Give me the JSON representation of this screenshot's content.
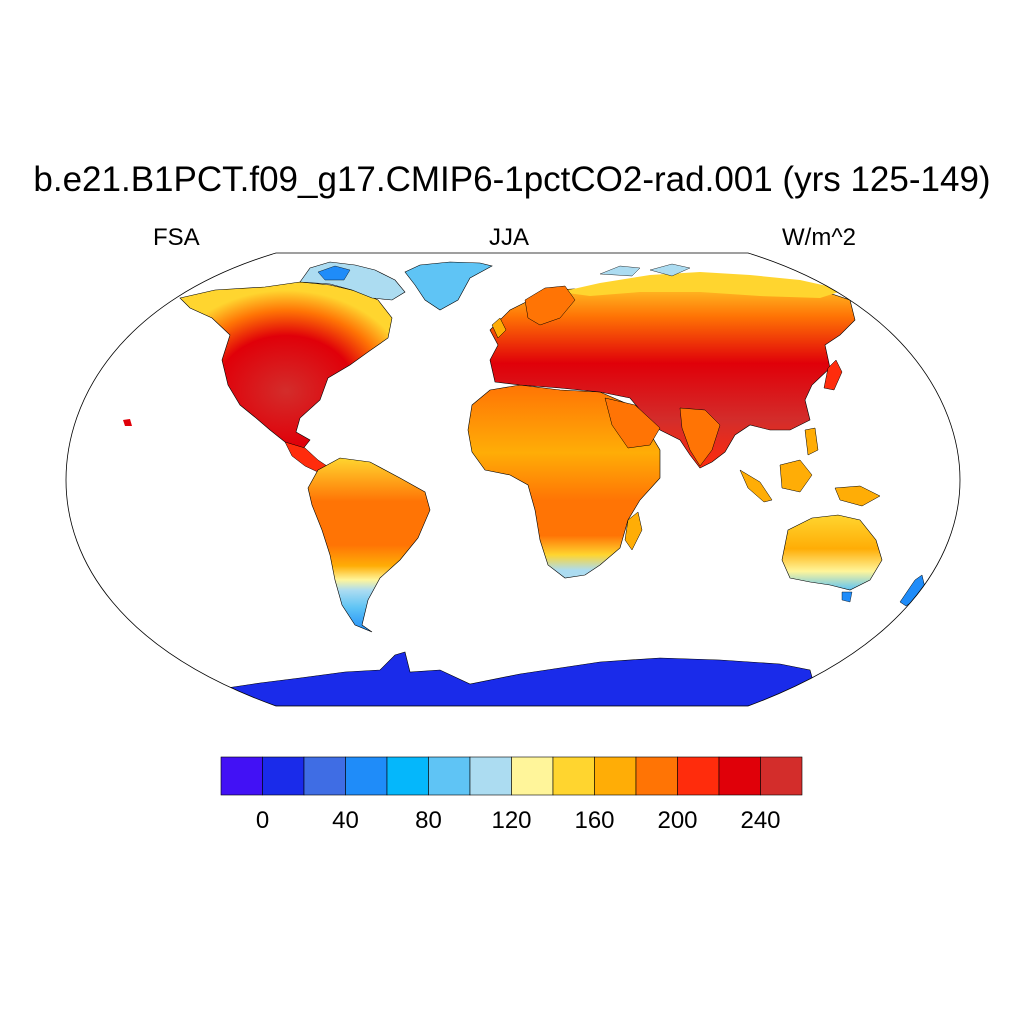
{
  "title": "b.e21.B1PCT.f09_g17.CMIP6-1pctCO2-rad.001 (yrs 125-149)",
  "left_label": "FSA",
  "center_label": "JJA",
  "right_label": "W/m^2",
  "map": {
    "projection": "robinson",
    "ocean_color": "#ffffff",
    "field": "absorbed solar radiation over land",
    "antarctica_value": 10,
    "greenland_value": 75
  },
  "colorbar": {
    "colors": [
      "#4211f5",
      "#1a2bea",
      "#3f6de4",
      "#1f8cf9",
      "#05b7fb",
      "#5fc4f5",
      "#acdcf1",
      "#fff59a",
      "#ffd52f",
      "#ffad06",
      "#ff7405",
      "#ff2c0c",
      "#e00009",
      "#d32d2b"
    ],
    "tick_labels": [
      "0",
      "40",
      "80",
      "120",
      "160",
      "200",
      "240"
    ]
  }
}
